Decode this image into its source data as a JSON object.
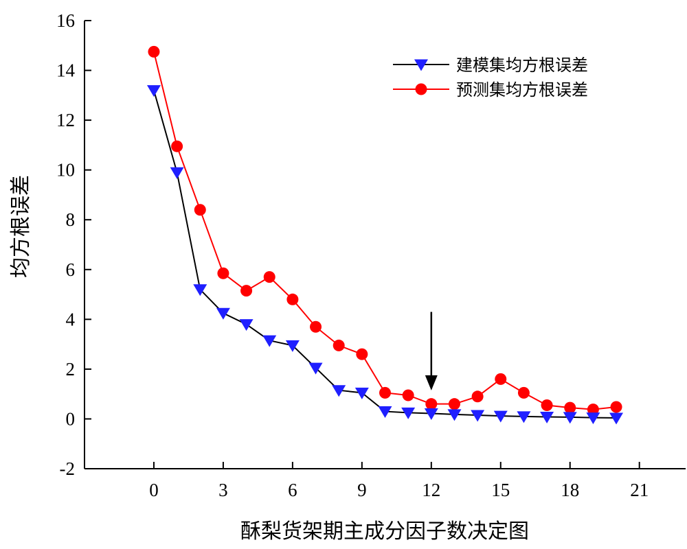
{
  "chart_data": {
    "type": "line",
    "xlabel": "酥梨货架期主成分因子数决定图",
    "ylabel": "均方根误差",
    "xlim": [
      -3,
      23
    ],
    "ylim": [
      -2,
      16
    ],
    "x_ticks": [
      0,
      3,
      6,
      9,
      12,
      15,
      18,
      21
    ],
    "x_tick_labels": [
      "0",
      "3",
      "6",
      "9",
      "12",
      "15",
      "18",
      "21"
    ],
    "y_ticks": [
      -2,
      0,
      2,
      4,
      6,
      8,
      10,
      12,
      14,
      16
    ],
    "y_tick_labels": [
      "-2",
      "0",
      "2",
      "4",
      "6",
      "8",
      "10",
      "12",
      "14",
      "16"
    ],
    "grid": false,
    "legend_position": "top-right",
    "x": [
      0,
      1,
      2,
      3,
      4,
      5,
      6,
      7,
      8,
      9,
      10,
      11,
      12,
      13,
      14,
      15,
      16,
      17,
      18,
      19,
      20
    ],
    "series": [
      {
        "name": "建模集均方根误差",
        "color": "#000000",
        "marker": "triangle-down",
        "marker_color": "#1f1fff",
        "values": [
          13.2,
          9.9,
          5.2,
          4.25,
          3.8,
          3.15,
          2.95,
          2.05,
          1.15,
          1.05,
          0.3,
          0.25,
          0.22,
          0.18,
          0.15,
          0.12,
          0.1,
          0.08,
          0.07,
          0.05,
          0.04
        ]
      },
      {
        "name": "预测集均方根误差",
        "color": "#ff0000",
        "marker": "circle",
        "marker_color": "#ff0000",
        "values": [
          14.75,
          10.95,
          8.4,
          5.85,
          5.15,
          5.7,
          4.8,
          3.7,
          2.95,
          2.6,
          1.05,
          0.95,
          0.6,
          0.6,
          0.9,
          1.6,
          1.05,
          0.55,
          0.45,
          0.38,
          0.48
        ]
      }
    ],
    "annotations": [
      {
        "type": "arrow",
        "x": 12,
        "y_from": 4.3,
        "y_to": 1.2,
        "color": "#000000"
      }
    ]
  }
}
